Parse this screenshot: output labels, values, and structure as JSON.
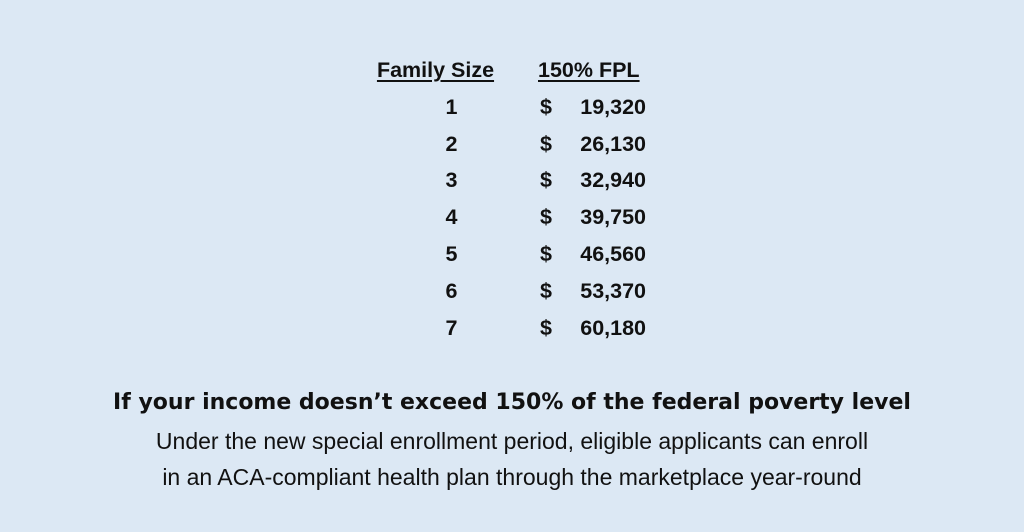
{
  "table": {
    "header_family_size": "Family Size",
    "header_fpl": "150% FPL",
    "currency_symbol": "$",
    "rows": [
      {
        "family_size": "1",
        "amount": "19,320"
      },
      {
        "family_size": "2",
        "amount": "26,130"
      },
      {
        "family_size": "3",
        "amount": "32,940"
      },
      {
        "family_size": "4",
        "amount": "39,750"
      },
      {
        "family_size": "5",
        "amount": "46,560"
      },
      {
        "family_size": "6",
        "amount": "53,370"
      },
      {
        "family_size": "7",
        "amount": "60,180"
      }
    ]
  },
  "caption": {
    "headline": "If your income doesn’t exceed 150% of the federal poverty level",
    "line_1": "Under the new special enrollment period, eligible applicants can enroll",
    "line_2": "in an ACA-compliant health plan through the marketplace year-round"
  },
  "colors": {
    "background": "#dce8f4",
    "text": "#111111"
  }
}
